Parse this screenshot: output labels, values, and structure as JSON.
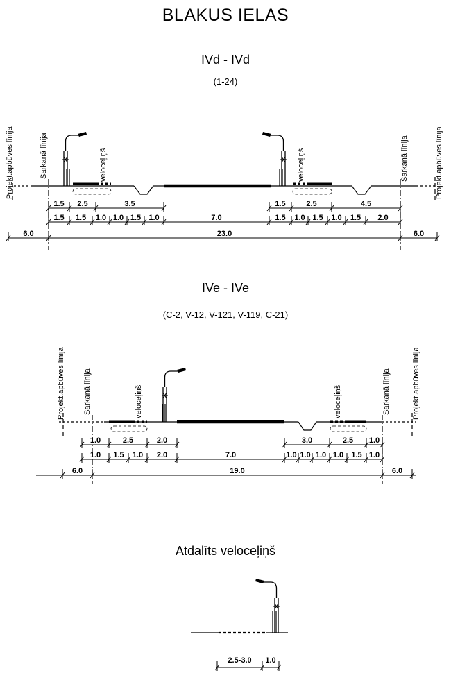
{
  "title": "BLAKUS IELAS",
  "labels": {
    "projekt": "Projekt.apbūves līnija",
    "sarkana": "Sarkanā līnija",
    "velocelins": "veloceļiņš"
  },
  "section1": {
    "title": "IVd - IVd",
    "subtitle": "(1-24)",
    "row1": [
      "1.5",
      "2.5",
      "3.5",
      "1.5",
      "2.5",
      "4.5"
    ],
    "row2": [
      "1.5",
      "1.5",
      "1.0",
      "1.0",
      "1.5",
      "1.0",
      "7.0",
      "1.5",
      "1.0",
      "1.5",
      "1.0",
      "1.5",
      "2.0"
    ],
    "row3": [
      "6.0",
      "23.0",
      "6.0"
    ]
  },
  "section2": {
    "title": "IVe - IVe",
    "subtitle": "(C-2, V-12, V-121, V-119, C-21)",
    "row1": [
      "1.0",
      "2.5",
      "2.0",
      "3.0",
      "2.5",
      "1.0"
    ],
    "row2": [
      "1.0",
      "1.5",
      "1.0",
      "2.0",
      "7.0",
      "1.0",
      "1.0",
      "1.0",
      "1.0",
      "1.5",
      "1.0"
    ],
    "row3": [
      "6.0",
      "19.0",
      "6.0"
    ]
  },
  "section3": {
    "title": "Atdalīts veloceļiņš",
    "row1": [
      "2.5-3.0",
      "1.0"
    ]
  }
}
